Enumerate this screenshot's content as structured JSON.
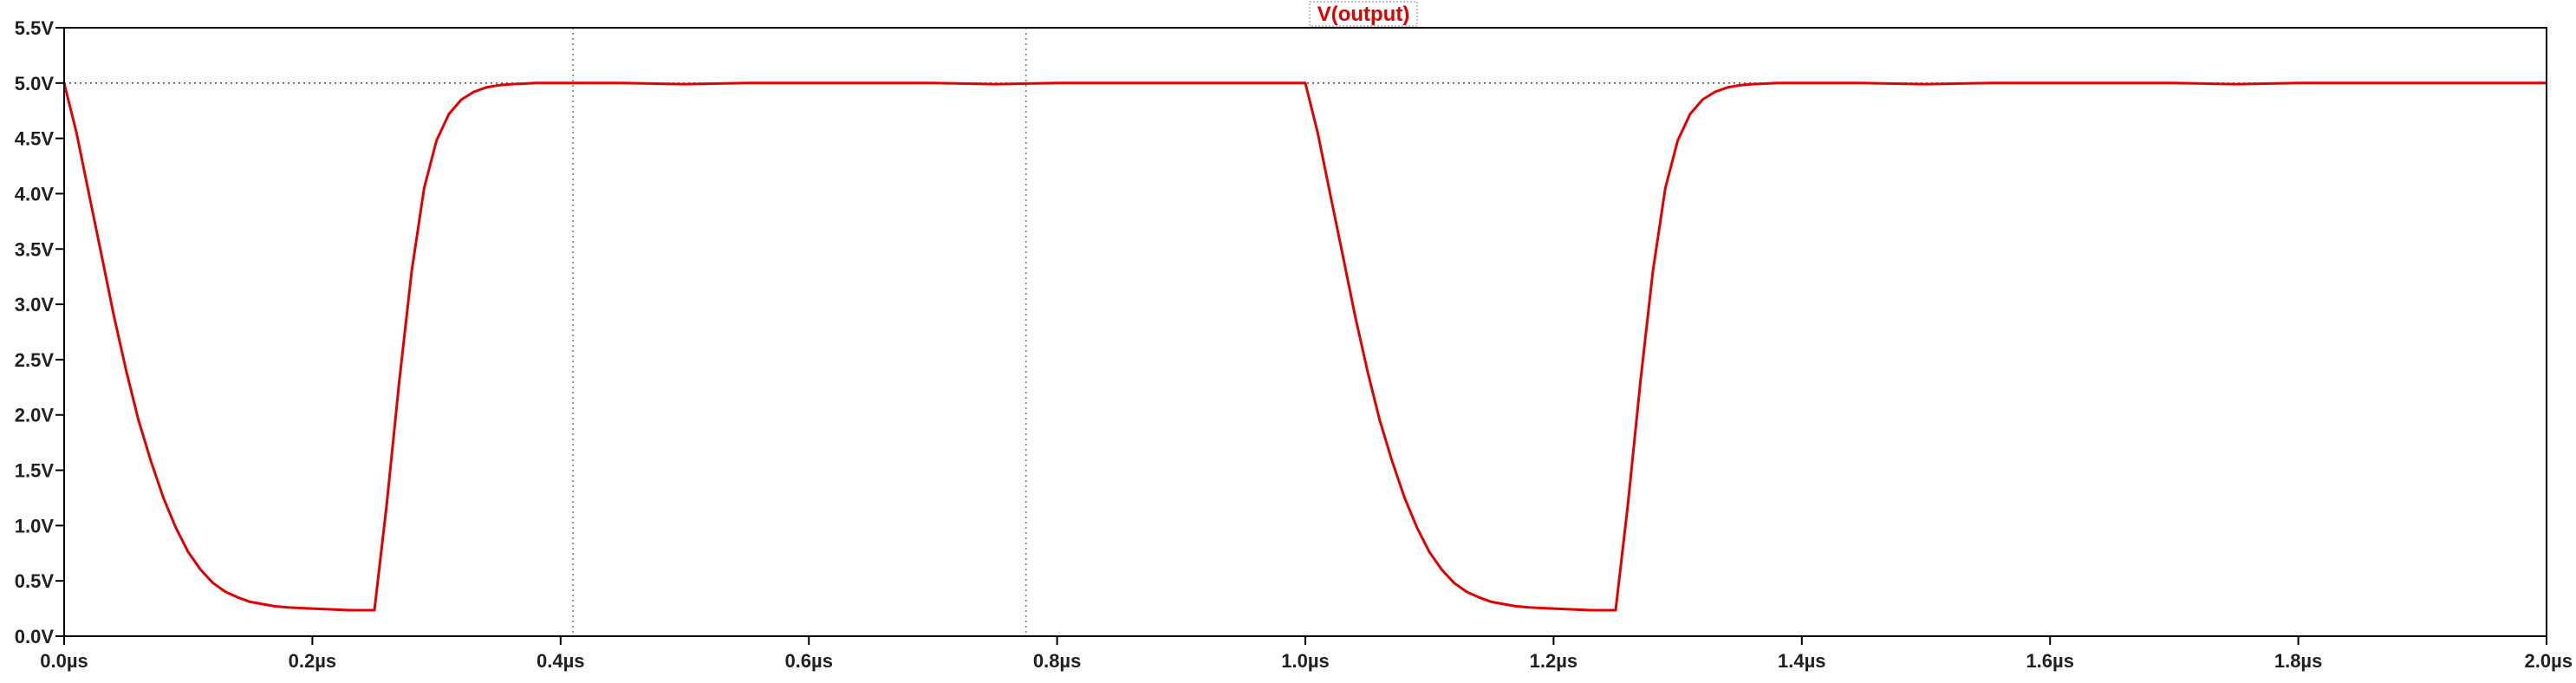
{
  "chart_data": {
    "type": "line",
    "title": "V(output)",
    "xlabel": "",
    "ylabel": "",
    "xlim": [
      0.0,
      2.0
    ],
    "ylim": [
      0.0,
      5.5
    ],
    "x_ticks": [
      "0.0µs",
      "0.2µs",
      "0.4µs",
      "0.6µs",
      "0.8µs",
      "1.0µs",
      "1.2µs",
      "1.4µs",
      "1.6µs",
      "1.8µs",
      "2.0µs"
    ],
    "y_ticks": [
      "0.0V",
      "0.5V",
      "1.0V",
      "1.5V",
      "2.0V",
      "2.5V",
      "3.0V",
      "3.5V",
      "4.0V",
      "4.5V",
      "5.0V",
      "5.5V"
    ],
    "cursor_lines_x": [
      0.41,
      0.775
    ],
    "reference_line_y": 5.0,
    "grid": false,
    "series": [
      {
        "name": "V(output)",
        "color": "#e00000",
        "x": [
          0.0,
          0.01,
          0.02,
          0.03,
          0.04,
          0.05,
          0.06,
          0.07,
          0.08,
          0.09,
          0.1,
          0.11,
          0.12,
          0.13,
          0.14,
          0.15,
          0.16,
          0.17,
          0.18,
          0.19,
          0.2,
          0.21,
          0.22,
          0.23,
          0.24,
          0.25,
          0.26,
          0.27,
          0.28,
          0.29,
          0.3,
          0.31,
          0.32,
          0.33,
          0.34,
          0.35,
          0.36,
          0.37,
          0.38,
          0.39,
          0.4,
          0.42,
          0.45,
          0.5,
          0.55,
          0.6,
          0.65,
          0.7,
          0.75,
          0.8,
          0.85,
          0.9,
          0.95,
          1.0,
          1.01,
          1.02,
          1.03,
          1.04,
          1.05,
          1.06,
          1.07,
          1.08,
          1.09,
          1.1,
          1.11,
          1.12,
          1.13,
          1.14,
          1.15,
          1.16,
          1.17,
          1.18,
          1.19,
          1.2,
          1.21,
          1.22,
          1.23,
          1.24,
          1.25,
          1.26,
          1.27,
          1.28,
          1.29,
          1.3,
          1.31,
          1.32,
          1.33,
          1.34,
          1.35,
          1.36,
          1.37,
          1.38,
          1.39,
          1.4,
          1.42,
          1.45,
          1.5,
          1.55,
          1.6,
          1.65,
          1.7,
          1.75,
          1.8,
          1.85,
          1.9,
          1.95,
          2.0
        ],
        "y": [
          5.0,
          4.55,
          4.0,
          3.45,
          2.9,
          2.4,
          1.95,
          1.58,
          1.25,
          0.98,
          0.76,
          0.6,
          0.48,
          0.4,
          0.35,
          0.31,
          0.29,
          0.27,
          0.26,
          0.255,
          0.25,
          0.245,
          0.24,
          0.235,
          0.235,
          0.235,
          1.2,
          2.3,
          3.3,
          4.05,
          4.48,
          4.72,
          4.85,
          4.92,
          4.96,
          4.98,
          4.99,
          4.995,
          5.0,
          5.0,
          5.0,
          5.0,
          5.0,
          4.99,
          5.0,
          5.0,
          5.0,
          5.0,
          4.99,
          5.0,
          5.0,
          5.0,
          5.0,
          5.0,
          4.55,
          4.0,
          3.45,
          2.9,
          2.4,
          1.95,
          1.58,
          1.25,
          0.98,
          0.76,
          0.6,
          0.48,
          0.4,
          0.35,
          0.31,
          0.29,
          0.27,
          0.26,
          0.255,
          0.25,
          0.245,
          0.24,
          0.235,
          0.235,
          0.235,
          1.2,
          2.3,
          3.3,
          4.05,
          4.48,
          4.72,
          4.85,
          4.92,
          4.96,
          4.98,
          4.99,
          4.995,
          5.0,
          5.0,
          5.0,
          5.0,
          5.0,
          4.99,
          5.0,
          5.0,
          5.0,
          5.0,
          4.99,
          5.0,
          5.0,
          5.0,
          5.0,
          5.0
        ]
      }
    ]
  }
}
